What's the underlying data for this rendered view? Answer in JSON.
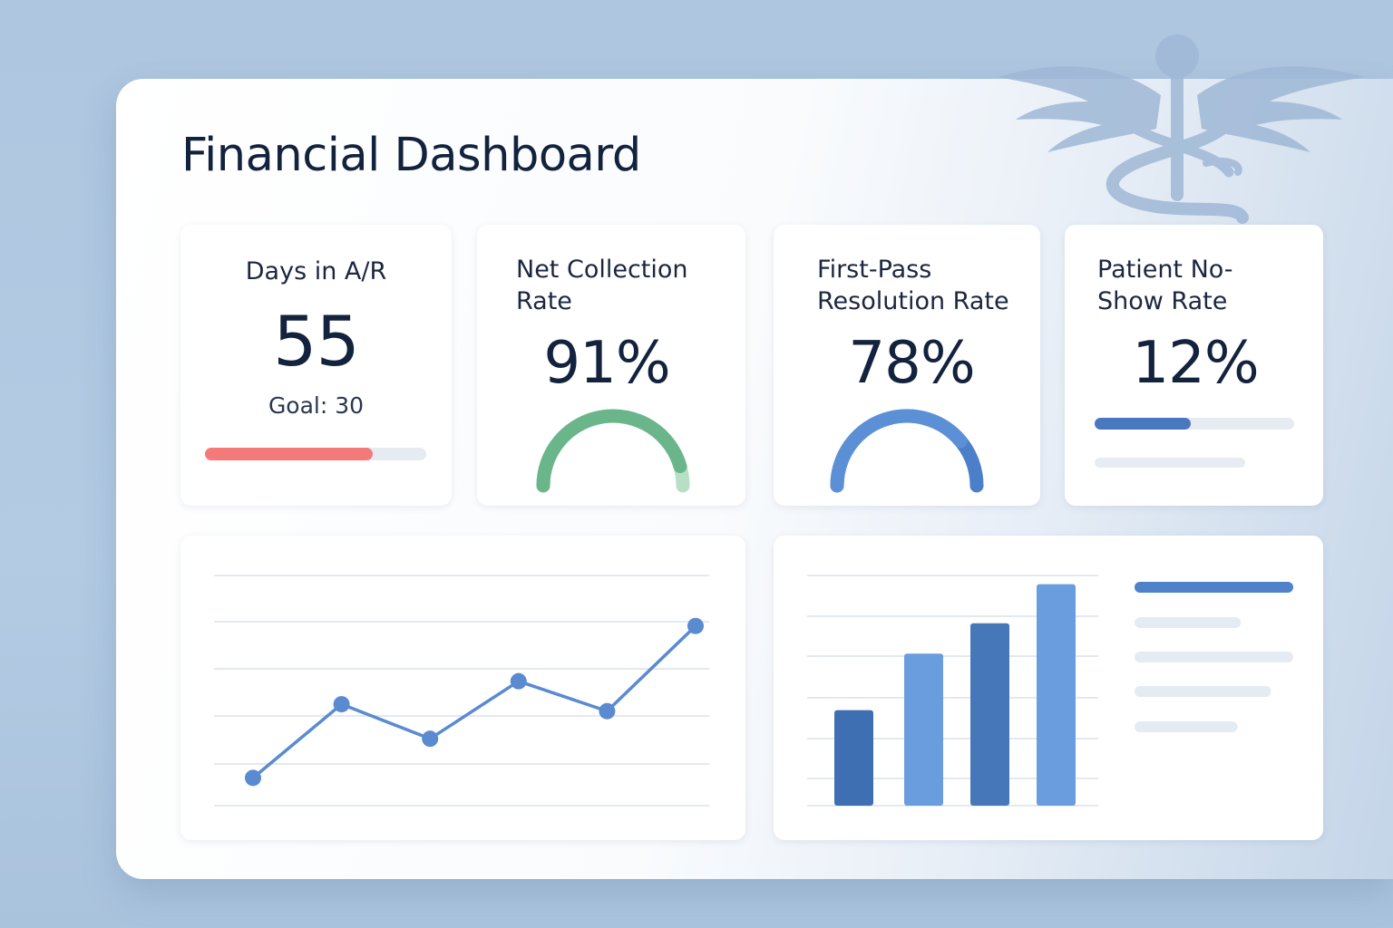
{
  "dashboard": {
    "title": "Financial Dashboard"
  },
  "kpis": [
    {
      "label": "Days in A/R",
      "value": "55",
      "goal_text": "Goal: 30",
      "progress": 0.76,
      "color": "#f47a7a"
    },
    {
      "label": "Net Collection\nRate",
      "value": "91%",
      "gauge": 0.91,
      "color": "#6bb58b",
      "track_color": "#b7dfc5"
    },
    {
      "label": "First-Pass\nResolution Rate",
      "value": "78%",
      "gauge": 0.78,
      "color": "#5b8fd6",
      "track_color": "#4c7fc9"
    },
    {
      "label": "Patient No-\nShow Rate",
      "value": "12%",
      "progress": 0.48,
      "color": "#4a78c0"
    }
  ],
  "charts": [
    {
      "type": "line",
      "x": [
        1,
        2,
        3,
        4,
        5,
        6
      ],
      "values": [
        1.6,
        4.8,
        3.3,
        5.8,
        4.5,
        8.2
      ],
      "ylim": [
        0,
        10
      ],
      "grid": true,
      "color": "#5a8ad0"
    },
    {
      "type": "bar",
      "values": [
        2.2,
        3.5,
        4.2,
        5.1
      ],
      "ylim": [
        0,
        5.3
      ],
      "grid": true,
      "colors": [
        "#3f6fb3",
        "#6a9ddd",
        "#4677b8",
        "#6a9ddd"
      ],
      "legend_lines": [
        {
          "fill": 1.0,
          "color": "#4f82c8"
        },
        {
          "fill": 0.67,
          "color": "#e5ebf3"
        },
        {
          "fill": 1.0,
          "color": "#e5ebf3"
        },
        {
          "fill": 0.86,
          "color": "#e5ebf3"
        },
        {
          "fill": 0.65,
          "color": "#e5ebf3"
        }
      ]
    }
  ]
}
